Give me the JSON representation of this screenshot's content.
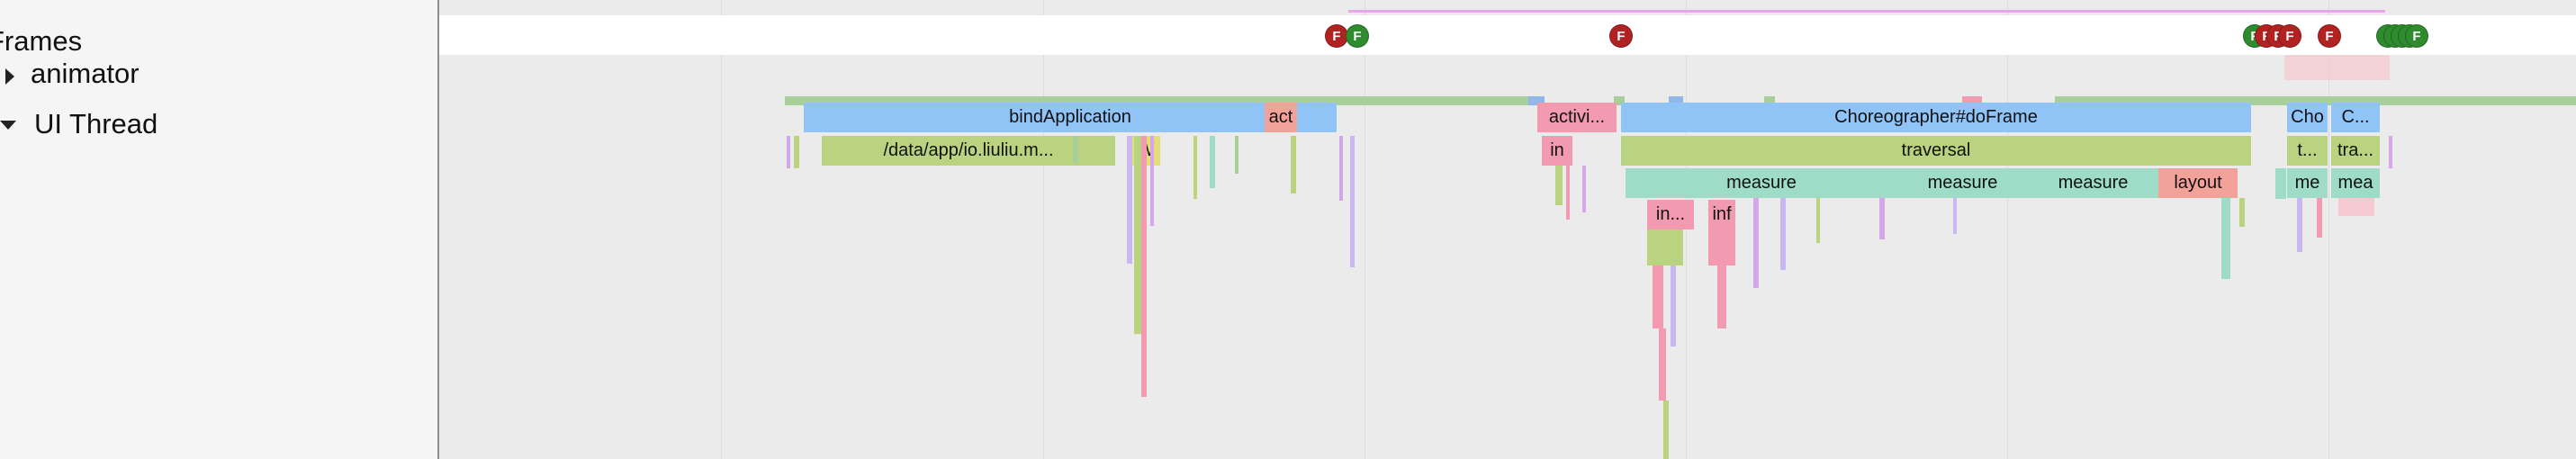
{
  "sidebar": {
    "frames_label": "Frames",
    "tracks": [
      {
        "label": "animator",
        "expanded": false
      },
      {
        "label": "UI Thread",
        "expanded": true
      }
    ]
  },
  "frames_track": {
    "markers": [
      "F",
      "F",
      "F",
      "F",
      "F",
      "F",
      "F",
      "F",
      "F",
      "F",
      "F",
      "F",
      "F"
    ]
  },
  "slices": {
    "depth0": [
      "bindApplication",
      "act",
      "activi...",
      "Choreographer#doFrame",
      "Cho",
      "C..."
    ],
    "depth1": [
      "/data/app/io.liuliu.m...",
      "W",
      "in",
      "traversal",
      "t...",
      "tra..."
    ],
    "depth2": [
      "measure",
      "measure",
      "measure",
      "layout",
      "me",
      "mea"
    ],
    "depth3": [
      "in...",
      "inf"
    ]
  },
  "colors": {
    "frame_marker_red": "#b22222",
    "frame_marker_green": "#2e8b2e",
    "slice_blue": "#90c4f7",
    "slice_green": "#b9d381",
    "slice_teal": "#9fdcc7",
    "slice_pink": "#f19ab0",
    "slice_salmon": "#f3a29a",
    "frame_range_line": "#e6a6e8"
  }
}
